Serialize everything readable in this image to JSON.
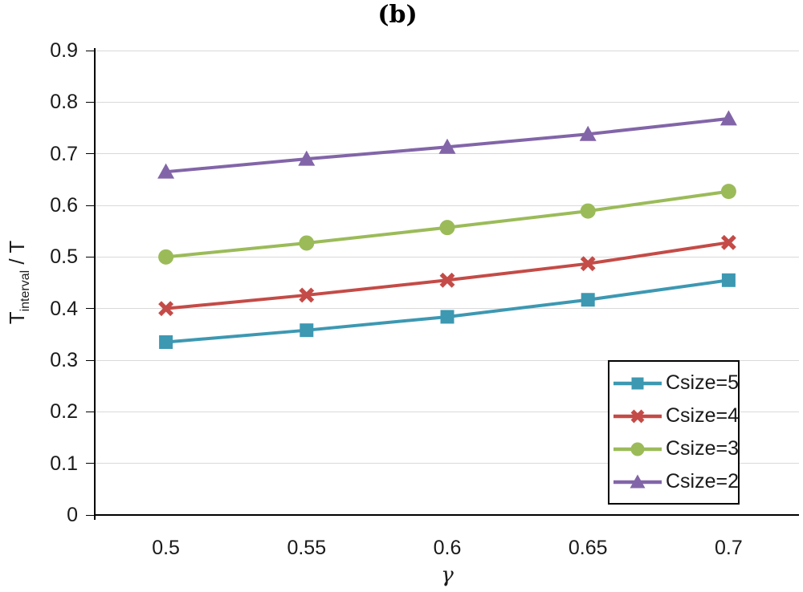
{
  "title": "(b)",
  "axes": {
    "x": {
      "label": "γ",
      "ticks": [
        "0.5",
        "0.55",
        "0.6",
        "0.65",
        "0.7"
      ]
    },
    "y": {
      "label_main": "T",
      "label_sub": "interval",
      "label_rest": " / T",
      "ticks": [
        "0.9",
        "0.8",
        "0.7",
        "0.6",
        "0.5",
        "0.4",
        "0.3",
        "0.2",
        "0.1",
        "0"
      ],
      "min": 0,
      "max": 0.9
    }
  },
  "chart_data": {
    "type": "line",
    "title": "(b)",
    "xlabel": "γ",
    "ylabel": "T_interval / T",
    "x": [
      0.5,
      0.55,
      0.6,
      0.65,
      0.7
    ],
    "ylim": [
      0,
      0.9
    ],
    "grid": "horizontal",
    "legend_position": "bottom-right",
    "series": [
      {
        "name": "Csize=5",
        "marker": "square",
        "color": "#3D98B2",
        "values": [
          0.335,
          0.358,
          0.384,
          0.417,
          0.455
        ]
      },
      {
        "name": "Csize=4",
        "marker": "x",
        "color": "#C44B47",
        "values": [
          0.4,
          0.426,
          0.455,
          0.487,
          0.528
        ]
      },
      {
        "name": "Csize=3",
        "marker": "circle",
        "color": "#9BBB59",
        "values": [
          0.5,
          0.527,
          0.557,
          0.589,
          0.627
        ]
      },
      {
        "name": "Csize=2",
        "marker": "triangle",
        "color": "#8265A8",
        "values": [
          0.665,
          0.69,
          0.713,
          0.738,
          0.768
        ]
      }
    ]
  },
  "colors": {
    "grid": "#D9D9D9",
    "axis": "#000000"
  }
}
